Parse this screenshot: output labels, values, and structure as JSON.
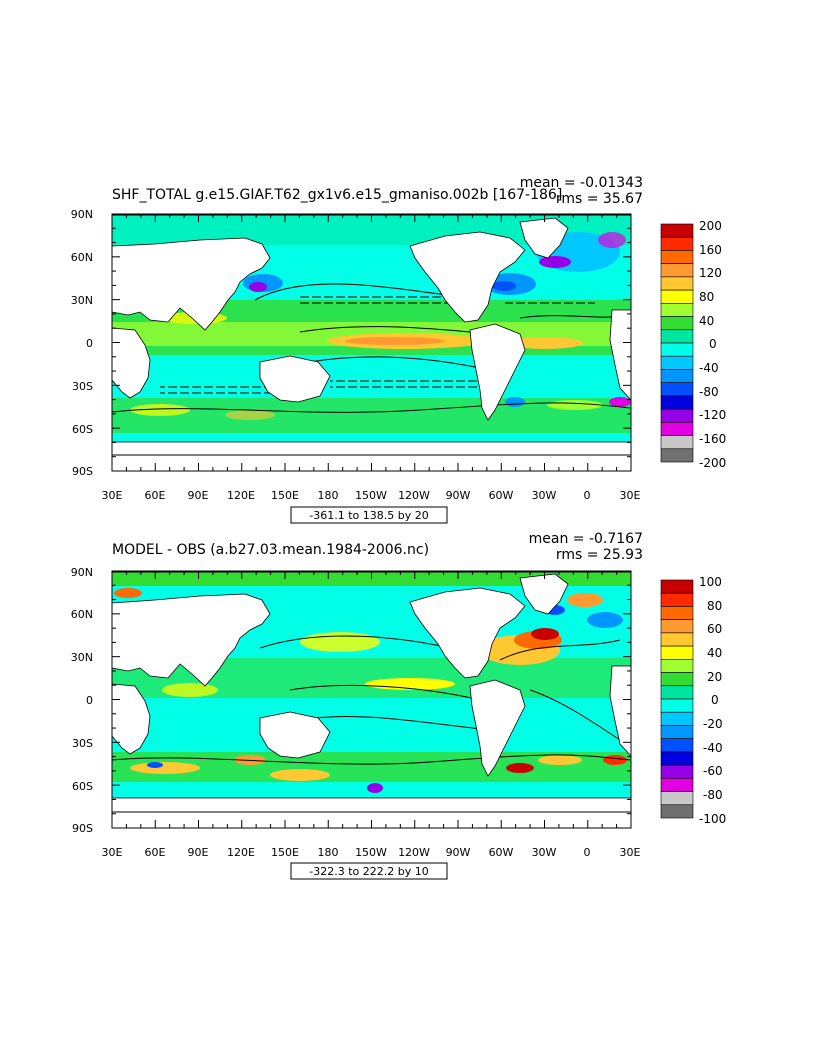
{
  "colors": {
    "land": "#ffffff",
    "contour": "#000000",
    "frame": "#000000"
  },
  "panels": [
    {
      "title": "SHF_TOTAL g.e15.GIAF.T62_gx1v6.e15_gmaniso.002b [167-186]",
      "mean_label": "mean = -0.01343",
      "rms_label": "rms = 35.67",
      "range_label": "-361.1 to 138.5 by 20",
      "lat_ticks": [
        "90N",
        "60N",
        "30N",
        "0",
        "30S",
        "60S",
        "90S"
      ],
      "lon_ticks": [
        "30E",
        "60E",
        "90E",
        "120E",
        "150E",
        "180",
        "150W",
        "120W",
        "90W",
        "60W",
        "30W",
        "0",
        "30E"
      ],
      "legend_labels": [
        "200",
        "160",
        "120",
        "80",
        "40",
        "0",
        "-40",
        "-80",
        "-120",
        "-160",
        "-200"
      ],
      "legend_colors": [
        "#c80000",
        "#ff2a00",
        "#ff6a00",
        "#ff9a32",
        "#ffc832",
        "#ffff00",
        "#a0ff32",
        "#32dc32",
        "#00e6a0",
        "#00ffe6",
        "#00c8ff",
        "#0096ff",
        "#0050ff",
        "#0000e0",
        "#9600e6",
        "#e100e1",
        "#c8c8c8",
        "#707070"
      ]
    },
    {
      "title": "MODEL - OBS (a.b27.03.mean.1984-2006.nc)",
      "mean_label": "mean = -0.7167",
      "rms_label": "rms = 25.93",
      "range_label": "-322.3 to 222.2 by 10",
      "lat_ticks": [
        "90N",
        "60N",
        "30N",
        "0",
        "30S",
        "60S",
        "90S"
      ],
      "lon_ticks": [
        "30E",
        "60E",
        "90E",
        "120E",
        "150E",
        "180",
        "150W",
        "120W",
        "90W",
        "60W",
        "30W",
        "0",
        "30E"
      ],
      "legend_labels": [
        "100",
        "80",
        "60",
        "40",
        "20",
        "0",
        "-20",
        "-40",
        "-60",
        "-80",
        "-100"
      ],
      "legend_colors": [
        "#c80000",
        "#ff2a00",
        "#ff6a00",
        "#ff9a32",
        "#ffc832",
        "#ffff00",
        "#a0ff32",
        "#32dc32",
        "#00e6a0",
        "#00ffe6",
        "#00c8ff",
        "#0096ff",
        "#0050ff",
        "#0000e0",
        "#9600e6",
        "#e100e1",
        "#c8c8c8",
        "#707070"
      ]
    }
  ]
}
